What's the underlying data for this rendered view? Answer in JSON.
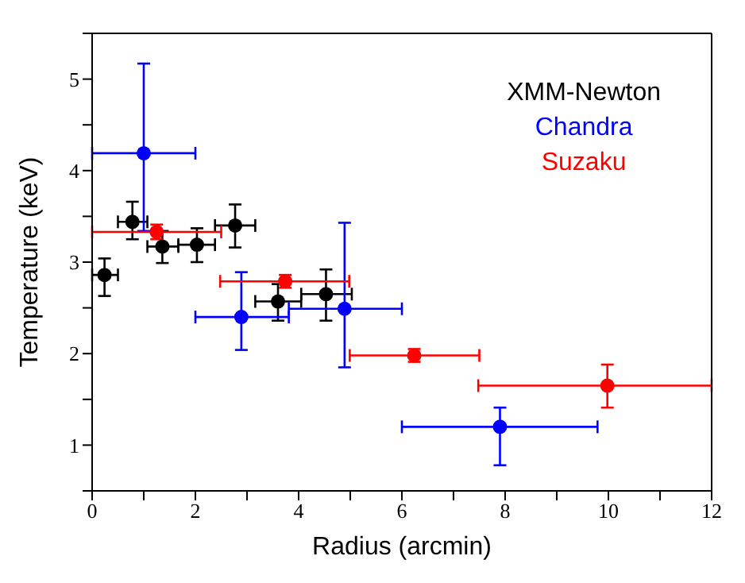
{
  "chart_data": {
    "type": "scatter",
    "xlabel": "Radius (arcmin)",
    "ylabel": "Temperature (keV)",
    "xlim": [
      0,
      12
    ],
    "xticks": [
      0,
      {
        "value": 1,
        "label": null
      },
      2,
      {
        "value": 3,
        "label": null
      },
      4,
      {
        "value": 5,
        "label": null
      },
      6,
      {
        "value": 7,
        "label": null
      },
      8,
      {
        "value": 9,
        "label": null
      },
      10,
      {
        "value": 11,
        "label": null
      },
      12
    ],
    "ylim": [
      0.5,
      5.5
    ],
    "yticks": [
      {
        "value": 0.5,
        "label": null
      },
      1,
      {
        "value": 1.5,
        "label": null
      },
      2,
      {
        "value": 2.5,
        "label": null
      },
      3,
      {
        "value": 3.5,
        "label": null
      },
      4,
      {
        "value": 4.5,
        "label": null
      },
      5,
      {
        "value": 5.5,
        "label": null
      }
    ],
    "legend": "top right",
    "marker": "circle",
    "series": [
      {
        "name": "XMM-Newton",
        "color": "#000000",
        "x": [
          0.24,
          0.78,
          1.36,
          2.03,
          2.77,
          3.6,
          4.53
        ],
        "values": [
          2.86,
          3.44,
          3.17,
          3.19,
          3.4,
          2.57,
          2.65
        ],
        "errors": [
          [
            2.63,
            3.04
          ],
          [
            3.25,
            3.66
          ],
          [
            2.99,
            3.34
          ],
          [
            3.0,
            3.37
          ],
          [
            3.16,
            3.63
          ],
          [
            2.36,
            2.76
          ],
          [
            2.36,
            2.92
          ]
        ],
        "xerrors": [
          [
            0,
            0.5
          ],
          [
            0.5,
            1.07
          ],
          [
            1.07,
            1.67
          ],
          [
            1.67,
            2.38
          ],
          [
            2.38,
            3.16
          ],
          [
            3.16,
            4.05
          ],
          [
            4.05,
            5.03
          ]
        ]
      },
      {
        "name": "Chandra",
        "color": "#0000ff",
        "x": [
          1.0,
          2.89,
          4.89,
          7.9
        ],
        "values": [
          4.19,
          2.4,
          2.49,
          1.2
        ],
        "errors": [
          [
            3.34,
            5.17
          ],
          [
            2.04,
            2.89
          ],
          [
            1.85,
            3.43
          ],
          [
            0.78,
            1.41
          ]
        ],
        "xerrors": [
          [
            0,
            2
          ],
          [
            2,
            3.81
          ],
          [
            3.81,
            6
          ],
          [
            6,
            9.79
          ]
        ]
      },
      {
        "name": "Suzaku",
        "color": "#ff0000",
        "x": [
          1.25,
          3.74,
          6.24,
          9.98
        ],
        "values": [
          3.33,
          2.79,
          1.98,
          1.65
        ],
        "errors": [
          [
            3.25,
            3.41
          ],
          [
            2.72,
            2.86
          ],
          [
            1.91,
            2.05
          ],
          [
            1.41,
            1.88
          ]
        ],
        "xerrors": [
          [
            0,
            2.5
          ],
          [
            2.48,
            4.98
          ],
          [
            4.99,
            7.5
          ],
          [
            7.48,
            12
          ]
        ]
      }
    ]
  }
}
